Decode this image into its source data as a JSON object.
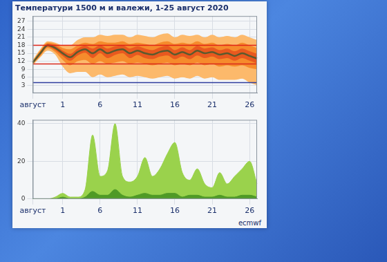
{
  "chart_data": [
    {
      "type": "line",
      "title": "Температури 1500 м и валежи, 1-25 август 2020",
      "categories": [
        "август",
        null,
        null,
        null,
        "1",
        null,
        null,
        null,
        null,
        "6",
        null,
        null,
        null,
        null,
        "11",
        null,
        null,
        null,
        null,
        "16",
        null,
        null,
        null,
        null,
        "21",
        null,
        null,
        null,
        null,
        "26",
        null
      ],
      "ylim": [
        0,
        29
      ],
      "yticks": [
        3,
        6,
        9,
        12,
        15,
        18,
        21,
        24,
        27
      ],
      "grid": true,
      "series": [
        {
          "type": "band",
          "color": "#fcb96b",
          "values": [
            12.5,
            16.5,
            19.5,
            19,
            18,
            18,
            20,
            21,
            21,
            22,
            21.5,
            22,
            22,
            21,
            22,
            21.5,
            21,
            22,
            22.5,
            21,
            22,
            21.5,
            22,
            21,
            22,
            21,
            21.5,
            21,
            22,
            21,
            20
          ],
          "lower": [
            10.5,
            13.5,
            16,
            14.5,
            10,
            7.5,
            8,
            8,
            6,
            7,
            6,
            6.5,
            7,
            6,
            6.5,
            6,
            5.5,
            6,
            6.5,
            5.5,
            6,
            5.5,
            6.5,
            5.5,
            6,
            5,
            5,
            5,
            5.5,
            4,
            3
          ]
        },
        {
          "type": "band",
          "color": "#f68b2c",
          "values": [
            12,
            16,
            19,
            18.5,
            17,
            16.5,
            18,
            19,
            18.5,
            19.5,
            19,
            19,
            19.5,
            18.5,
            19,
            18.5,
            18,
            19,
            19.5,
            18.5,
            19,
            18.5,
            19.5,
            18.5,
            19,
            18,
            18.5,
            18,
            19,
            18,
            17
          ],
          "lower": [
            11,
            14,
            17,
            15.5,
            12.5,
            10.5,
            12,
            12.5,
            11,
            12,
            11,
            11.5,
            12,
            11,
            11.5,
            11,
            10.5,
            11,
            11.5,
            10.5,
            11,
            10.5,
            11.5,
            10.5,
            11,
            10,
            10.5,
            10,
            10.5,
            9.5,
            9
          ]
        },
        {
          "type": "band",
          "color": "#e8591f",
          "values": [
            11.8,
            15.6,
            18.5,
            17.8,
            16,
            14.8,
            16.8,
            17.8,
            16.8,
            18,
            16.8,
            17.6,
            18,
            16.8,
            17.6,
            16.8,
            16.2,
            17.2,
            17.8,
            16.2,
            17.2,
            16.2,
            17.8,
            16.8,
            17.2,
            16.2,
            16.8,
            15.8,
            16.8,
            15.8,
            14.8
          ],
          "lower": [
            11.2,
            14.4,
            17.5,
            16.2,
            14,
            12.2,
            14.2,
            15.2,
            13.2,
            15,
            13.2,
            14.4,
            15,
            13.2,
            14.4,
            13.2,
            12.8,
            13.8,
            14.2,
            12.8,
            13.8,
            12.8,
            14.2,
            13.2,
            13.8,
            12.8,
            13.2,
            12.2,
            13.2,
            12.2,
            11.2
          ]
        },
        {
          "type": "line",
          "color": "#5b5a2e",
          "values": [
            11.5,
            15,
            18,
            17,
            15,
            13.5,
            15.5,
            16.5,
            15,
            16.5,
            15,
            16,
            16.5,
            15,
            16,
            15,
            14.5,
            15.5,
            16,
            14.5,
            15.5,
            14.5,
            16,
            15,
            15.5,
            14.5,
            15,
            14,
            15,
            14,
            13
          ]
        }
      ],
      "hlines": [
        {
          "value": 18,
          "color": "#e02418"
        },
        {
          "value": 11,
          "color": "#d92a1c"
        },
        {
          "value": 4,
          "color": "#2d3c9e"
        }
      ]
    },
    {
      "type": "area",
      "categories": [
        "август",
        null,
        null,
        null,
        "1",
        null,
        null,
        null,
        null,
        "6",
        null,
        null,
        null,
        null,
        "11",
        null,
        null,
        null,
        null,
        "16",
        null,
        null,
        null,
        null,
        "21",
        null,
        null,
        null,
        null,
        "26",
        null
      ],
      "ylim": [
        0,
        42
      ],
      "yticks": [
        0,
        20,
        40
      ],
      "grid": true,
      "annotation": "ecmwf",
      "series": [
        {
          "color": "#9ad24c",
          "values": [
            0,
            0,
            0,
            1,
            3,
            1,
            1,
            5,
            34,
            12,
            15,
            40,
            12,
            9,
            12,
            22,
            12,
            16,
            24,
            30,
            14,
            10,
            16,
            8,
            6,
            14,
            8,
            12,
            16,
            20,
            8
          ]
        },
        {
          "color": "#4f9a26",
          "values": [
            0,
            0,
            0,
            0,
            1,
            0,
            0,
            1,
            4,
            2,
            2,
            5,
            2,
            1,
            2,
            3,
            2,
            2,
            3,
            3,
            1,
            2,
            2,
            1,
            1,
            2,
            1,
            1,
            2,
            2,
            1
          ]
        }
      ]
    }
  ]
}
